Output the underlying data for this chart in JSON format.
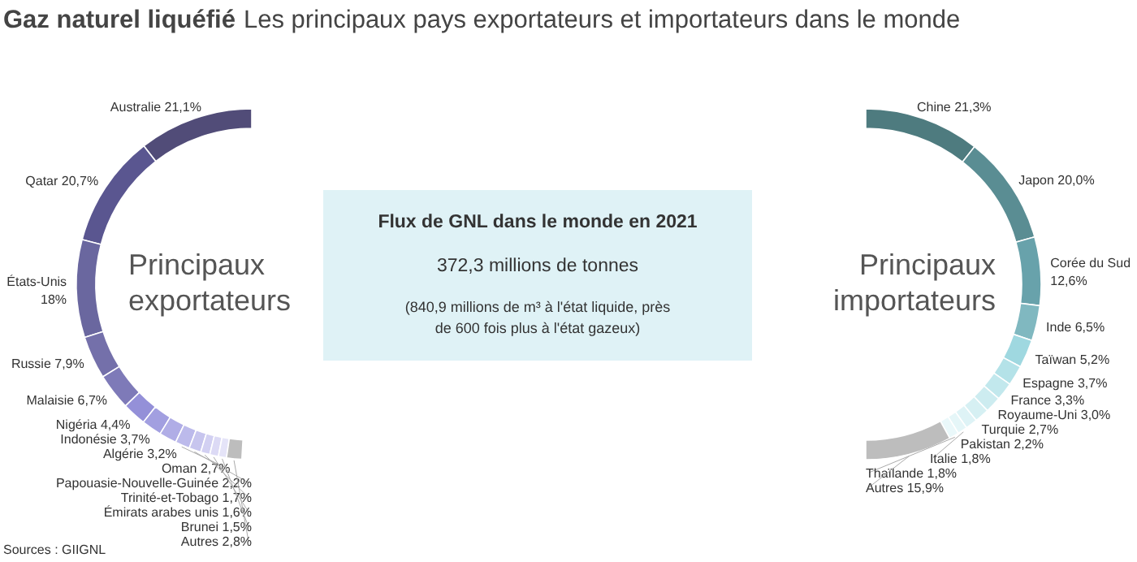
{
  "chart_data": [
    {
      "type": "donut",
      "title": "Gaz naturel liquéfié",
      "subtitle": "Les principaux pays exportateurs et importateurs dans le monde",
      "annotations": [
        "Principaux exportateurs",
        "Sources : GIIGNL"
      ],
      "categories": [
        "Australie",
        "Qatar",
        "États-Unis",
        "Russie",
        "Malaisie",
        "Nigéria",
        "Indonésie",
        "Algérie",
        "Oman",
        "Papouasie-Nouvelle-Guinée",
        "Trinité-et-Tobago",
        "Émirats arabes unis",
        "Brunei",
        "Autres"
      ],
      "values": [
        21.1,
        20.7,
        18,
        7.9,
        6.7,
        4.4,
        3.7,
        3.2,
        2.7,
        2.2,
        1.7,
        1.6,
        1.5,
        2.8
      ],
      "value_labels": [
        "21,1%",
        "20,7%",
        "18%",
        "7,9%",
        "6,7%",
        "4,4%",
        "3,7%",
        "3,2%",
        "2,7%",
        "2,2%",
        "1,7%",
        "1,6%",
        "1,5%",
        "2,8%"
      ],
      "colors": [
        "#514c78",
        "#5a5690",
        "#6a679f",
        "#7470aa",
        "#7e7ab8",
        "#9490d8",
        "#a29fe0",
        "#b0ade6",
        "#bcbaeb",
        "#c7c5ee",
        "#d2d0f2",
        "#dcdaf5",
        "#e5e4f8",
        "#bdbdbd"
      ]
    },
    {
      "type": "other",
      "annotations": [
        "Flux de GNL dans le monde en 2021",
        "372,3 millions de tonnes",
        "(840,9 millions de m³ à l'état liquide, près de 600 fois plus à l'état gazeux)"
      ]
    },
    {
      "type": "donut",
      "annotations": [
        "Principaux importateurs"
      ],
      "categories": [
        "Chine",
        "Japon",
        "Corée du Sud",
        "Inde",
        "Taïwan",
        "Espagne",
        "France",
        "Royaume-Uni",
        "Turquie",
        "Pakistan",
        "Italie",
        "Thaïlande",
        "Autres"
      ],
      "values": [
        21.3,
        20.0,
        12.6,
        6.5,
        5.2,
        3.7,
        3.3,
        3.0,
        2.7,
        2.2,
        1.8,
        1.8,
        15.9
      ],
      "value_labels": [
        "21,3%",
        "20,0%",
        "12,6%",
        "6,5%",
        "5,2%",
        "3,7%",
        "3,3%",
        "3,0%",
        "2,7%",
        "2,2%",
        "1,8%",
        "1,8%",
        "15,9%"
      ],
      "colors": [
        "#4e7b7f",
        "#5a8d93",
        "#68a2ab",
        "#80b8c0",
        "#9fd8e0",
        "#b4e2e8",
        "#c2e8ed",
        "#cdecf0",
        "#d6f0f3",
        "#def3f6",
        "#e5f6f8",
        "#eaf8fa",
        "#bdbdbd"
      ]
    }
  ]
}
